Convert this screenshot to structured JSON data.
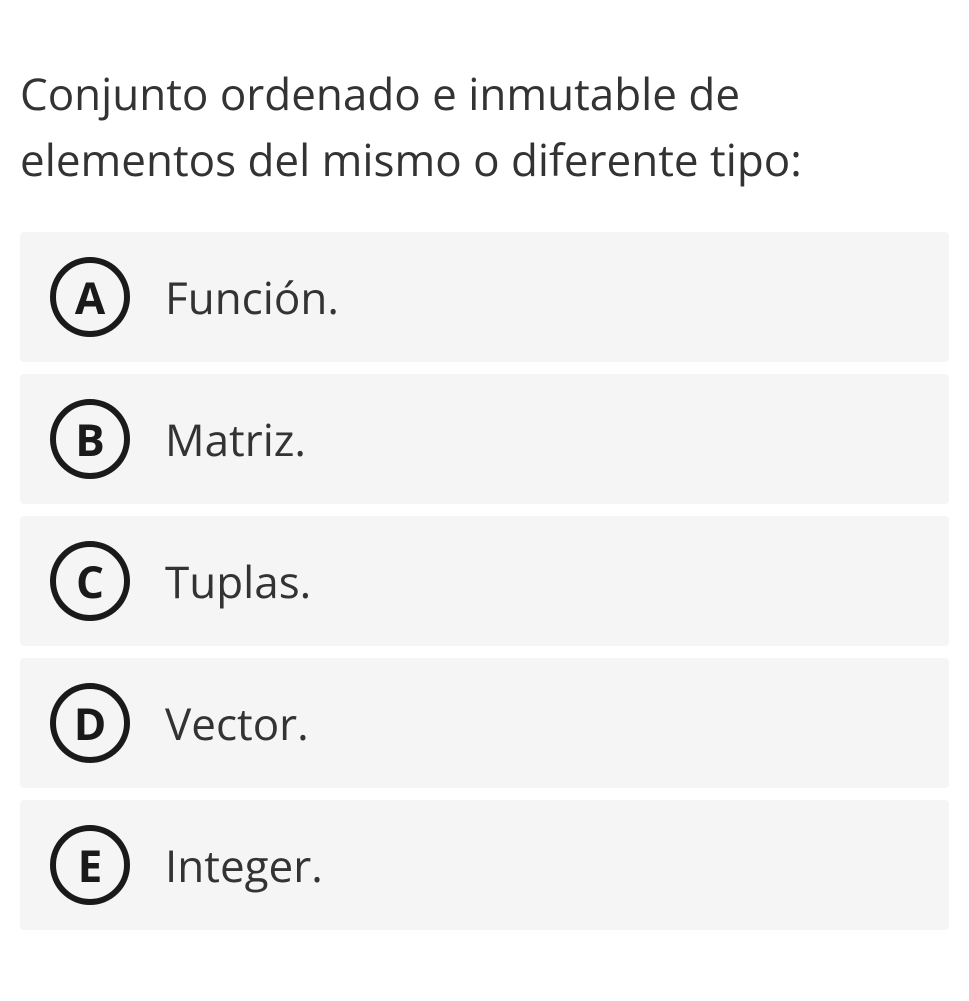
{
  "question": {
    "text": "Conjunto ordenado e inmutable de elementos del mismo o diferente tipo:",
    "text_color": "#333333",
    "font_size": 44,
    "background_color": "#ffffff"
  },
  "options": [
    {
      "letter": "A",
      "text": "Función."
    },
    {
      "letter": "B",
      "text": "Matriz."
    },
    {
      "letter": "C",
      "text": "Tuplas."
    },
    {
      "letter": "D",
      "text": "Vector."
    },
    {
      "letter": "E",
      "text": "Integer."
    }
  ],
  "styling": {
    "option_background": "#f5f5f5",
    "option_text_color": "#333333",
    "option_font_size": 44,
    "letter_circle_border_color": "#1a1a1a",
    "letter_circle_border_width": 6,
    "letter_circle_size": 80,
    "letter_font_weight": 700,
    "option_gap": 12,
    "option_padding": "25px 30px"
  }
}
